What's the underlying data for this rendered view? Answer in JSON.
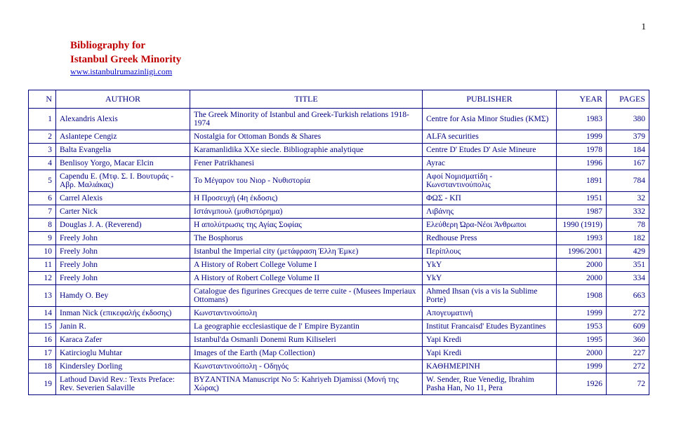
{
  "page_number": "1",
  "heading_line1": "Bibliography for",
  "heading_line2": "Istanbul Greek Minority",
  "link_text": "www.istanbulrumazinligi.com",
  "headers": {
    "n": "N",
    "author": "AUTHOR",
    "title": "TITLE",
    "publisher": "PUBLISHER",
    "year": "YEAR",
    "pages": "PAGES"
  },
  "rows": [
    {
      "n": "1",
      "author": "Alexandris Alexis",
      "title": "The Greek Minority of Istanbul and Greek-Turkish relations 1918-1974",
      "publisher": "Centre for Asia Minor Studies (ΚΜΣ)",
      "year": "1983",
      "pages": "380"
    },
    {
      "n": "2",
      "author": "Aslantepe Cengiz",
      "title": "Nostalgia for Ottoman Bonds & Shares",
      "publisher": "ALFA securities",
      "year": "1999",
      "pages": "379"
    },
    {
      "n": "3",
      "author": "Balta Evangelia",
      "title": "Karamanlidika XXe siecle. Bibliographie analytique",
      "publisher": "Centre D' Etudes D' Asie Mineure",
      "year": "1978",
      "pages": "184"
    },
    {
      "n": "4",
      "author": "Benlisoy Yorgo, Macar Elcin",
      "title": "Fener Patrikhanesi",
      "publisher": "Ayrac",
      "year": "1996",
      "pages": "167"
    },
    {
      "n": "5",
      "author": "Capendu E. (Μτφ. Σ. Ι. Βουτυράς - Αβρ. Μαλιάκας)",
      "title": "Το Μέγαρον του Νιορ - Νυθιστορία",
      "publisher": "Αφοί Νομισματίδη - Κωνσταντινούπολις",
      "year": "1891",
      "pages": "784"
    },
    {
      "n": "6",
      "author": "Carrel Alexis",
      "title": "Η Προσευχή (4η έκδοσις)",
      "publisher": "ΦΩΣ - ΚΠ",
      "year": "1951",
      "pages": "32"
    },
    {
      "n": "7",
      "author": "Carter Nick",
      "title": "Ιστάνμπουλ (μυθιστόρημα)",
      "publisher": "Λιβάνης",
      "year": "1987",
      "pages": "332"
    },
    {
      "n": "8",
      "author": "Douglas J. A. (Reverend)",
      "title": "Η απολύτρωσις της Αγίας Σοφίας",
      "publisher": "Ελεύθερη Ώρα-Νέοι Άνθρωποι",
      "year": "1990 (1919)",
      "pages": "78"
    },
    {
      "n": "9",
      "author": "Freely John",
      "title": "The Bosphorus",
      "publisher": "Redhouse Press",
      "year": "1993",
      "pages": "182"
    },
    {
      "n": "10",
      "author": "Freely John",
      "title": "Istanbul the Imperial city (μετάφραση Έλλη Έμκε)",
      "publisher": "Περίπλους",
      "year": "1996/2001",
      "pages": "429"
    },
    {
      "n": "11",
      "author": "Freely John",
      "title": "A History of Robert College Volume I",
      "publisher": "YkY",
      "year": "2000",
      "pages": "351"
    },
    {
      "n": "12",
      "author": "Freely John",
      "title": "A History of Robert College Volume II",
      "publisher": "YkY",
      "year": "2000",
      "pages": "334"
    },
    {
      "n": "13",
      "author": "Hamdy O. Bey",
      "title": "Catalogue des figurines Grecques de terre cuite - (Musees Imperiaux Ottomans)",
      "publisher": "Ahmed Ihsan (vis a vis la Sublime Porte)",
      "year": "1908",
      "pages": "663"
    },
    {
      "n": "14",
      "author": "Inman Nick (επικεφαλής έκδοσης)",
      "title": "Κωνσταντινούπολη",
      "publisher": "Απογευματινή",
      "year": "1999",
      "pages": "272"
    },
    {
      "n": "15",
      "author": "Janin R.",
      "title": "La geographie ecclesiastique de l' Empire Byzantin",
      "publisher": "Institut Francaisd' Etudes Byzantines",
      "year": "1953",
      "pages": "609"
    },
    {
      "n": "16",
      "author": "Karaca Zafer",
      "title": "Istanbul'da Osmanli Donemi Rum Kiliseleri",
      "publisher": "Yapi Kredi",
      "year": "1995",
      "pages": "360"
    },
    {
      "n": "17",
      "author": "Katircioglu Muhtar",
      "title": "Images of the Earth (Map Collection)",
      "publisher": "Yapi Kredi",
      "year": "2000",
      "pages": "227"
    },
    {
      "n": "18",
      "author": "Kindersley Dorling",
      "title": "Κωνσταντινούπολη - Οδηγός",
      "publisher": "ΚΑΘΗΜΕΡΙΝΗ",
      "year": "1999",
      "pages": "272"
    },
    {
      "n": "19",
      "author": "Lathoud David Rev.: Texts Preface: Rev. Severien Salaville",
      "title": "BYZANTINA Manuscript No 5: Kahriyeh Djamissi (Μονή της Χώρας)",
      "publisher": "W. Sender, Rue Venedig, Ibrahim Pasha Han, No 11, Pera",
      "year": "1926",
      "pages": "72"
    }
  ]
}
